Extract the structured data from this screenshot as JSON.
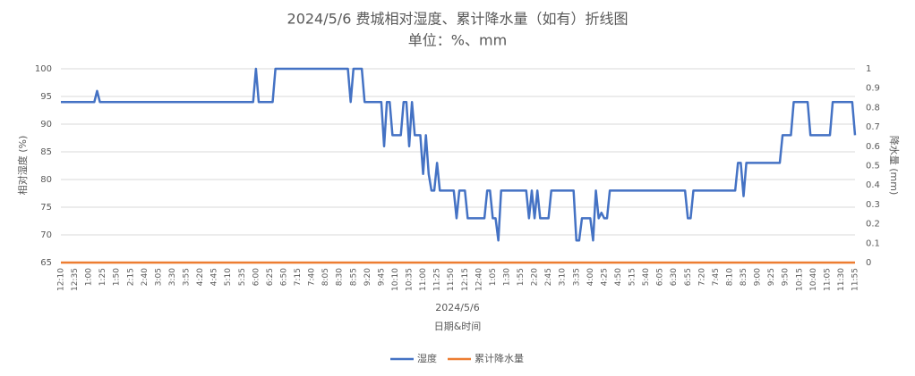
{
  "chart_data": {
    "type": "line",
    "title": "2024/5/6 费城相对湿度、累计降水量（如有）折线图",
    "subtitle": "单位：%、mm",
    "x_group_label": "2024/5/6",
    "xlabel": "日期&时间",
    "ylabel": "相对湿度 (%)",
    "y2label": "降水量 (mm)",
    "ylim": [
      65,
      100
    ],
    "yticks": [
      65,
      70,
      75,
      80,
      85,
      90,
      95,
      100
    ],
    "y2lim": [
      0,
      1
    ],
    "y2ticks": [
      0,
      0.1,
      0.2,
      0.3,
      0.4,
      0.5,
      0.6,
      0.7,
      0.8,
      0.9,
      1
    ],
    "grid": true,
    "legend": "bottom",
    "categories": [
      "12:10",
      null,
      null,
      null,
      null,
      "12:35",
      null,
      null,
      null,
      null,
      "1:00",
      null,
      null,
      null,
      null,
      "1:25",
      null,
      null,
      null,
      null,
      "1:50",
      null,
      null,
      null,
      null,
      "2:15",
      null,
      null,
      null,
      null,
      "2:40",
      null,
      null,
      null,
      null,
      "3:05",
      null,
      null,
      null,
      null,
      "3:30",
      null,
      null,
      null,
      null,
      "3:55",
      null,
      null,
      null,
      null,
      "4:20",
      null,
      null,
      null,
      null,
      "4:45",
      null,
      null,
      null,
      null,
      "5:10",
      null,
      null,
      null,
      null,
      "5:35",
      null,
      null,
      null,
      null,
      "6:00",
      null,
      null,
      null,
      null,
      "6:25",
      null,
      null,
      null,
      null,
      "6:50",
      null,
      null,
      null,
      null,
      "7:15",
      null,
      null,
      null,
      null,
      "7:40",
      null,
      null,
      null,
      null,
      "8:05",
      null,
      null,
      null,
      null,
      "8:30",
      null,
      null,
      null,
      null,
      "8:55",
      null,
      null,
      null,
      null,
      "9:20",
      null,
      null,
      null,
      null,
      "9:45",
      null,
      null,
      null,
      null,
      "10:10",
      null,
      null,
      null,
      null,
      "10:35",
      null,
      null,
      null,
      null,
      "11:00",
      null,
      null,
      null,
      null,
      "11:25",
      null,
      null,
      null,
      null,
      "11:50",
      null,
      null,
      null,
      null,
      "12:15",
      null,
      null,
      null,
      null,
      "12:40",
      null,
      null,
      null,
      null,
      "1:05",
      null,
      null,
      null,
      null,
      "1:30",
      null,
      null,
      null,
      null,
      "1:55",
      null,
      null,
      null,
      null,
      "2:20",
      null,
      null,
      null,
      null,
      "2:45",
      null,
      null,
      null,
      null,
      "3:10",
      null,
      null,
      null,
      null,
      "3:35",
      null,
      null,
      null,
      null,
      "4:00",
      null,
      null,
      null,
      null,
      "4:25",
      null,
      null,
      null,
      null,
      "4:50",
      null,
      null,
      null,
      null,
      "5:15",
      null,
      null,
      null,
      null,
      "5:40",
      null,
      null,
      null,
      null,
      "6:05",
      null,
      null,
      null,
      null,
      "6:30",
      null,
      null,
      null,
      null,
      "6:55",
      null,
      null,
      null,
      null,
      "7:20",
      null,
      null,
      null,
      null,
      "7:45",
      null,
      null,
      null,
      null,
      "8:10",
      null,
      null,
      null,
      null,
      "8:35",
      null,
      null,
      null,
      null,
      "9:00",
      null,
      null,
      null,
      null,
      "9:25",
      null,
      null,
      null,
      null,
      "9:50",
      null,
      null,
      null,
      null,
      "10:15",
      null,
      null,
      null,
      null,
      "10:40",
      null,
      null,
      null,
      null,
      "11:05",
      null,
      null,
      null,
      null,
      "11:30",
      null,
      null,
      null,
      null,
      "11:55"
    ],
    "series": [
      {
        "name": "湿度",
        "color": "#4472c4",
        "values": [
          94,
          94,
          94,
          94,
          94,
          94,
          94,
          94,
          94,
          94,
          94,
          94,
          94,
          96,
          94,
          94,
          94,
          94,
          94,
          94,
          94,
          94,
          94,
          94,
          94,
          94,
          94,
          94,
          94,
          94,
          94,
          94,
          94,
          94,
          94,
          94,
          94,
          94,
          94,
          94,
          94,
          94,
          94,
          94,
          94,
          94,
          94,
          94,
          94,
          94,
          94,
          94,
          94,
          94,
          94,
          94,
          94,
          94,
          94,
          94,
          94,
          94,
          94,
          94,
          94,
          94,
          94,
          94,
          94,
          94,
          100,
          94,
          94,
          94,
          94,
          94,
          94,
          100,
          100,
          100,
          100,
          100,
          100,
          100,
          100,
          100,
          100,
          100,
          100,
          100,
          100,
          100,
          100,
          100,
          100,
          100,
          100,
          100,
          100,
          100,
          100,
          100,
          100,
          100,
          94,
          100,
          100,
          100,
          100,
          94,
          94,
          94,
          94,
          94,
          94,
          94,
          86,
          94,
          94,
          88,
          88,
          88,
          88,
          94,
          94,
          86,
          94,
          88,
          88,
          88,
          81,
          88,
          81,
          78,
          78,
          83,
          78,
          78,
          78,
          78,
          78,
          78,
          73,
          78,
          78,
          78,
          73,
          73,
          73,
          73,
          73,
          73,
          73,
          78,
          78,
          73,
          73,
          69,
          78,
          78,
          78,
          78,
          78,
          78,
          78,
          78,
          78,
          78,
          73,
          78,
          73,
          78,
          73,
          73,
          73,
          73,
          78,
          78,
          78,
          78,
          78,
          78,
          78,
          78,
          78,
          69,
          69,
          73,
          73,
          73,
          73,
          69,
          78,
          73,
          74,
          73,
          73,
          78,
          78,
          78,
          78,
          78,
          78,
          78,
          78,
          78,
          78,
          78,
          78,
          78,
          78,
          78,
          78,
          78,
          78,
          78,
          78,
          78,
          78,
          78,
          78,
          78,
          78,
          78,
          78,
          73,
          73,
          78,
          78,
          78,
          78,
          78,
          78,
          78,
          78,
          78,
          78,
          78,
          78,
          78,
          78,
          78,
          78,
          83,
          83,
          77,
          83,
          83,
          83,
          83,
          83,
          83,
          83,
          83,
          83,
          83,
          83,
          83,
          83,
          88,
          88,
          88,
          88,
          94,
          94,
          94,
          94,
          94,
          94,
          88,
          88,
          88,
          88,
          88,
          88,
          88,
          88,
          94,
          94,
          94,
          94,
          94,
          94,
          94,
          94,
          88
        ]
      },
      {
        "name": "累计降水量",
        "color": "#ed7d31",
        "axis": "y2",
        "values": [
          0,
          0,
          0,
          0,
          0,
          0,
          0,
          0,
          0,
          0,
          0,
          0,
          0,
          0,
          0,
          0,
          0,
          0,
          0,
          0,
          0,
          0,
          0,
          0,
          0,
          0,
          0,
          0,
          0,
          0,
          0,
          0,
          0,
          0,
          0,
          0,
          0,
          0,
          0,
          0,
          0,
          0,
          0,
          0,
          0,
          0,
          0,
          0,
          0,
          0,
          0,
          0,
          0,
          0,
          0,
          0,
          0,
          0,
          0,
          0,
          0,
          0,
          0,
          0,
          0,
          0,
          0,
          0,
          0,
          0,
          0,
          0,
          0,
          0,
          0,
          0,
          0,
          0,
          0,
          0,
          0,
          0,
          0,
          0,
          0,
          0,
          0,
          0,
          0,
          0,
          0,
          0,
          0,
          0,
          0,
          0,
          0,
          0,
          0,
          0,
          0,
          0,
          0,
          0,
          0,
          0,
          0,
          0,
          0,
          0,
          0,
          0,
          0,
          0,
          0,
          0,
          0,
          0,
          0,
          0,
          0,
          0,
          0,
          0,
          0,
          0,
          0,
          0,
          0,
          0,
          0,
          0,
          0,
          0,
          0,
          0,
          0,
          0,
          0,
          0,
          0,
          0,
          0,
          0,
          0,
          0,
          0,
          0,
          0,
          0,
          0,
          0,
          0,
          0,
          0,
          0,
          0,
          0,
          0,
          0,
          0,
          0,
          0,
          0,
          0,
          0,
          0,
          0,
          0,
          0,
          0,
          0,
          0,
          0,
          0,
          0,
          0,
          0,
          0,
          0,
          0,
          0,
          0,
          0,
          0,
          0,
          0,
          0,
          0,
          0,
          0,
          0,
          0,
          0,
          0,
          0,
          0,
          0,
          0,
          0,
          0,
          0,
          0,
          0,
          0,
          0,
          0,
          0,
          0,
          0,
          0,
          0,
          0,
          0,
          0,
          0,
          0,
          0,
          0,
          0,
          0,
          0,
          0,
          0,
          0,
          0,
          0,
          0,
          0,
          0,
          0,
          0,
          0,
          0,
          0,
          0,
          0,
          0,
          0,
          0,
          0,
          0,
          0,
          0,
          0,
          0,
          0,
          0,
          0,
          0,
          0,
          0,
          0,
          0,
          0,
          0,
          0,
          0,
          0,
          0,
          0,
          0,
          0,
          0,
          0,
          0,
          0,
          0,
          0,
          0,
          0,
          0,
          0,
          0,
          0,
          0,
          0,
          0,
          0,
          0,
          0,
          0,
          0,
          0,
          0,
          0
        ]
      }
    ]
  }
}
